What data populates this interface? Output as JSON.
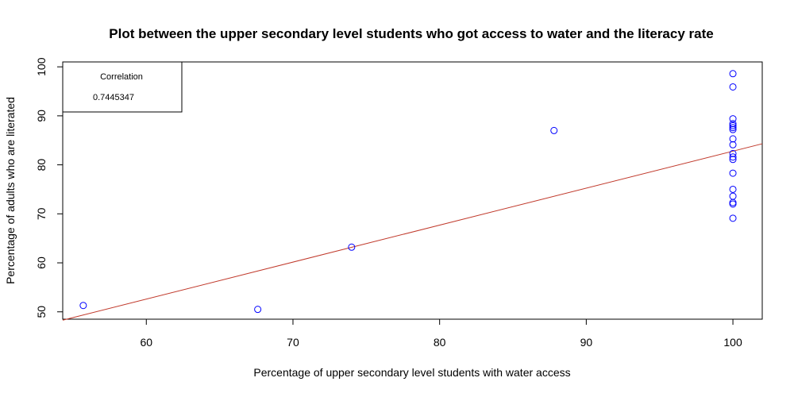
{
  "chart_data": {
    "type": "scatter",
    "title": "Plot between the upper secondary level students who got access to water and the literacy rate",
    "xlabel": "Percentage of upper secondary level students with water access",
    "ylabel": "Percentage of adults who are literated",
    "xlim": [
      54.3,
      102
    ],
    "ylim": [
      48.5,
      101
    ],
    "xticks": [
      60,
      70,
      80,
      90,
      100
    ],
    "yticks": [
      50,
      60,
      70,
      80,
      90,
      100
    ],
    "point_color": "#0000ff",
    "line_color": "#c0392b",
    "points": [
      {
        "x": 55.7,
        "y": 51.3
      },
      {
        "x": 67.6,
        "y": 50.5
      },
      {
        "x": 74.0,
        "y": 63.2
      },
      {
        "x": 87.8,
        "y": 87.0
      },
      {
        "x": 100,
        "y": 98.6
      },
      {
        "x": 100,
        "y": 95.9
      },
      {
        "x": 100,
        "y": 89.4
      },
      {
        "x": 100,
        "y": 88.4
      },
      {
        "x": 100,
        "y": 88.0
      },
      {
        "x": 100,
        "y": 87.6
      },
      {
        "x": 100,
        "y": 87.2
      },
      {
        "x": 100,
        "y": 85.3
      },
      {
        "x": 100,
        "y": 84.1
      },
      {
        "x": 100,
        "y": 82.3
      },
      {
        "x": 100,
        "y": 81.6
      },
      {
        "x": 100,
        "y": 81.1
      },
      {
        "x": 100,
        "y": 78.3
      },
      {
        "x": 100,
        "y": 75.0
      },
      {
        "x": 100,
        "y": 73.6
      },
      {
        "x": 100,
        "y": 72.3
      },
      {
        "x": 100,
        "y": 72.0
      },
      {
        "x": 100,
        "y": 69.1
      }
    ],
    "regression_line": {
      "x1": 54.3,
      "y1": 48.3,
      "x2": 102,
      "y2": 84.3
    },
    "legend": {
      "position": "top-left",
      "title": "Correlation",
      "value": "0.7445347"
    }
  }
}
